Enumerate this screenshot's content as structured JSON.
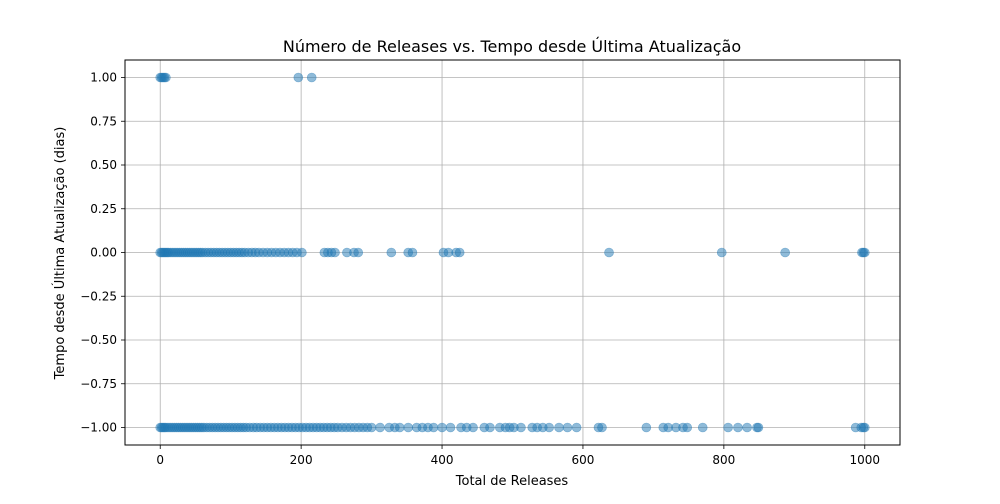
{
  "chart_data": {
    "type": "scatter",
    "title": "Número de Releases vs. Tempo desde Última Atualização",
    "xlabel": "Total de Releases",
    "ylabel": "Tempo desde Última Atualização (dias)",
    "xlim": [
      -50,
      1050
    ],
    "ylim": [
      -1.1,
      1.1
    ],
    "xticks": [
      0,
      200,
      400,
      600,
      800,
      1000
    ],
    "yticks": [
      -1.0,
      -0.75,
      -0.5,
      -0.25,
      0.0,
      0.25,
      0.5,
      0.75,
      1.0
    ],
    "xtick_labels": [
      "0",
      "200",
      "400",
      "600",
      "800",
      "1000"
    ],
    "ytick_labels": [
      "−1.00",
      "−0.75",
      "−0.50",
      "−0.25",
      "0.00",
      "0.25",
      "0.50",
      "0.75",
      "1.00"
    ],
    "grid": true,
    "marker_color": "#1f77b4",
    "marker_alpha": 0.5,
    "series": [
      {
        "values": [
          {
            "x": 0,
            "y": 1
          },
          {
            "x": 2,
            "y": 1
          },
          {
            "x": 4,
            "y": 1
          },
          {
            "x": 6,
            "y": 1
          },
          {
            "x": 8,
            "y": 1
          },
          {
            "x": 196,
            "y": 1
          },
          {
            "x": 215,
            "y": 1
          },
          {
            "x": 0,
            "y": 0
          },
          {
            "x": 2,
            "y": 0
          },
          {
            "x": 4,
            "y": 0
          },
          {
            "x": 6,
            "y": 0
          },
          {
            "x": 8,
            "y": 0
          },
          {
            "x": 10,
            "y": 0
          },
          {
            "x": 12,
            "y": 0
          },
          {
            "x": 15,
            "y": 0
          },
          {
            "x": 18,
            "y": 0
          },
          {
            "x": 21,
            "y": 0
          },
          {
            "x": 24,
            "y": 0
          },
          {
            "x": 27,
            "y": 0
          },
          {
            "x": 30,
            "y": 0
          },
          {
            "x": 33,
            "y": 0
          },
          {
            "x": 36,
            "y": 0
          },
          {
            "x": 39,
            "y": 0
          },
          {
            "x": 42,
            "y": 0
          },
          {
            "x": 45,
            "y": 0
          },
          {
            "x": 48,
            "y": 0
          },
          {
            "x": 51,
            "y": 0
          },
          {
            "x": 54,
            "y": 0
          },
          {
            "x": 57,
            "y": 0
          },
          {
            "x": 60,
            "y": 0
          },
          {
            "x": 64,
            "y": 0
          },
          {
            "x": 68,
            "y": 0
          },
          {
            "x": 72,
            "y": 0
          },
          {
            "x": 76,
            "y": 0
          },
          {
            "x": 80,
            "y": 0
          },
          {
            "x": 84,
            "y": 0
          },
          {
            "x": 88,
            "y": 0
          },
          {
            "x": 92,
            "y": 0
          },
          {
            "x": 96,
            "y": 0
          },
          {
            "x": 100,
            "y": 0
          },
          {
            "x": 104,
            "y": 0
          },
          {
            "x": 108,
            "y": 0
          },
          {
            "x": 112,
            "y": 0
          },
          {
            "x": 116,
            "y": 0
          },
          {
            "x": 120,
            "y": 0
          },
          {
            "x": 125,
            "y": 0
          },
          {
            "x": 130,
            "y": 0
          },
          {
            "x": 135,
            "y": 0
          },
          {
            "x": 140,
            "y": 0
          },
          {
            "x": 146,
            "y": 0
          },
          {
            "x": 152,
            "y": 0
          },
          {
            "x": 158,
            "y": 0
          },
          {
            "x": 164,
            "y": 0
          },
          {
            "x": 170,
            "y": 0
          },
          {
            "x": 176,
            "y": 0
          },
          {
            "x": 182,
            "y": 0
          },
          {
            "x": 188,
            "y": 0
          },
          {
            "x": 194,
            "y": 0
          },
          {
            "x": 201,
            "y": 0
          },
          {
            "x": 233,
            "y": 0
          },
          {
            "x": 238,
            "y": 0
          },
          {
            "x": 243,
            "y": 0
          },
          {
            "x": 248,
            "y": 0
          },
          {
            "x": 265,
            "y": 0
          },
          {
            "x": 275,
            "y": 0
          },
          {
            "x": 281,
            "y": 0
          },
          {
            "x": 328,
            "y": 0
          },
          {
            "x": 352,
            "y": 0
          },
          {
            "x": 358,
            "y": 0
          },
          {
            "x": 402,
            "y": 0
          },
          {
            "x": 409,
            "y": 0
          },
          {
            "x": 420,
            "y": 0
          },
          {
            "x": 425,
            "y": 0
          },
          {
            "x": 637,
            "y": 0
          },
          {
            "x": 797,
            "y": 0
          },
          {
            "x": 887,
            "y": 0
          },
          {
            "x": 996,
            "y": 0
          },
          {
            "x": 998,
            "y": 0
          },
          {
            "x": 1000,
            "y": 0
          },
          {
            "x": 0,
            "y": -1
          },
          {
            "x": 2,
            "y": -1
          },
          {
            "x": 4,
            "y": -1
          },
          {
            "x": 6,
            "y": -1
          },
          {
            "x": 8,
            "y": -1
          },
          {
            "x": 11,
            "y": -1
          },
          {
            "x": 14,
            "y": -1
          },
          {
            "x": 17,
            "y": -1
          },
          {
            "x": 20,
            "y": -1
          },
          {
            "x": 23,
            "y": -1
          },
          {
            "x": 26,
            "y": -1
          },
          {
            "x": 29,
            "y": -1
          },
          {
            "x": 32,
            "y": -1
          },
          {
            "x": 35,
            "y": -1
          },
          {
            "x": 38,
            "y": -1
          },
          {
            "x": 41,
            "y": -1
          },
          {
            "x": 44,
            "y": -1
          },
          {
            "x": 47,
            "y": -1
          },
          {
            "x": 50,
            "y": -1
          },
          {
            "x": 53,
            "y": -1
          },
          {
            "x": 56,
            "y": -1
          },
          {
            "x": 59,
            "y": -1
          },
          {
            "x": 62,
            "y": -1
          },
          {
            "x": 66,
            "y": -1
          },
          {
            "x": 70,
            "y": -1
          },
          {
            "x": 74,
            "y": -1
          },
          {
            "x": 78,
            "y": -1
          },
          {
            "x": 82,
            "y": -1
          },
          {
            "x": 86,
            "y": -1
          },
          {
            "x": 90,
            "y": -1
          },
          {
            "x": 94,
            "y": -1
          },
          {
            "x": 98,
            "y": -1
          },
          {
            "x": 102,
            "y": -1
          },
          {
            "x": 106,
            "y": -1
          },
          {
            "x": 110,
            "y": -1
          },
          {
            "x": 114,
            "y": -1
          },
          {
            "x": 118,
            "y": -1
          },
          {
            "x": 122,
            "y": -1
          },
          {
            "x": 127,
            "y": -1
          },
          {
            "x": 132,
            "y": -1
          },
          {
            "x": 137,
            "y": -1
          },
          {
            "x": 142,
            "y": -1
          },
          {
            "x": 147,
            "y": -1
          },
          {
            "x": 152,
            "y": -1
          },
          {
            "x": 157,
            "y": -1
          },
          {
            "x": 162,
            "y": -1
          },
          {
            "x": 167,
            "y": -1
          },
          {
            "x": 172,
            "y": -1
          },
          {
            "x": 177,
            "y": -1
          },
          {
            "x": 182,
            "y": -1
          },
          {
            "x": 187,
            "y": -1
          },
          {
            "x": 192,
            "y": -1
          },
          {
            "x": 197,
            "y": -1
          },
          {
            "x": 202,
            "y": -1
          },
          {
            "x": 207,
            "y": -1
          },
          {
            "x": 212,
            "y": -1
          },
          {
            "x": 217,
            "y": -1
          },
          {
            "x": 222,
            "y": -1
          },
          {
            "x": 227,
            "y": -1
          },
          {
            "x": 232,
            "y": -1
          },
          {
            "x": 237,
            "y": -1
          },
          {
            "x": 242,
            "y": -1
          },
          {
            "x": 247,
            "y": -1
          },
          {
            "x": 252,
            "y": -1
          },
          {
            "x": 258,
            "y": -1
          },
          {
            "x": 264,
            "y": -1
          },
          {
            "x": 270,
            "y": -1
          },
          {
            "x": 276,
            "y": -1
          },
          {
            "x": 282,
            "y": -1
          },
          {
            "x": 288,
            "y": -1
          },
          {
            "x": 294,
            "y": -1
          },
          {
            "x": 300,
            "y": -1
          },
          {
            "x": 312,
            "y": -1
          },
          {
            "x": 325,
            "y": -1
          },
          {
            "x": 333,
            "y": -1
          },
          {
            "x": 340,
            "y": -1
          },
          {
            "x": 352,
            "y": -1
          },
          {
            "x": 364,
            "y": -1
          },
          {
            "x": 372,
            "y": -1
          },
          {
            "x": 380,
            "y": -1
          },
          {
            "x": 388,
            "y": -1
          },
          {
            "x": 400,
            "y": -1
          },
          {
            "x": 412,
            "y": -1
          },
          {
            "x": 427,
            "y": -1
          },
          {
            "x": 435,
            "y": -1
          },
          {
            "x": 444,
            "y": -1
          },
          {
            "x": 460,
            "y": -1
          },
          {
            "x": 468,
            "y": -1
          },
          {
            "x": 482,
            "y": -1
          },
          {
            "x": 490,
            "y": -1
          },
          {
            "x": 496,
            "y": -1
          },
          {
            "x": 502,
            "y": -1
          },
          {
            "x": 512,
            "y": -1
          },
          {
            "x": 528,
            "y": -1
          },
          {
            "x": 535,
            "y": -1
          },
          {
            "x": 543,
            "y": -1
          },
          {
            "x": 552,
            "y": -1
          },
          {
            "x": 566,
            "y": -1
          },
          {
            "x": 578,
            "y": -1
          },
          {
            "x": 591,
            "y": -1
          },
          {
            "x": 622,
            "y": -1
          },
          {
            "x": 627,
            "y": -1
          },
          {
            "x": 690,
            "y": -1
          },
          {
            "x": 714,
            "y": -1
          },
          {
            "x": 721,
            "y": -1
          },
          {
            "x": 732,
            "y": -1
          },
          {
            "x": 742,
            "y": -1
          },
          {
            "x": 748,
            "y": -1
          },
          {
            "x": 770,
            "y": -1
          },
          {
            "x": 806,
            "y": -1
          },
          {
            "x": 820,
            "y": -1
          },
          {
            "x": 833,
            "y": -1
          },
          {
            "x": 847,
            "y": -1
          },
          {
            "x": 849,
            "y": -1
          },
          {
            "x": 987,
            "y": -1
          },
          {
            "x": 995,
            "y": -1
          },
          {
            "x": 998,
            "y": -1
          },
          {
            "x": 1000,
            "y": -1
          }
        ]
      }
    ]
  }
}
